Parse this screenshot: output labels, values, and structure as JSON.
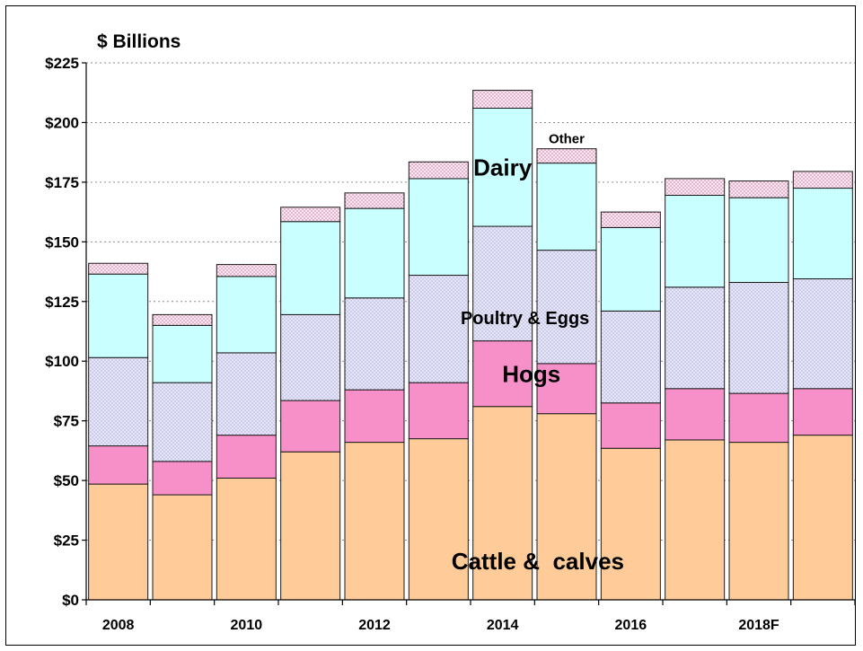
{
  "chart_data": {
    "type": "bar",
    "stacked": true,
    "title": "",
    "unit_label": "$ Billions",
    "xlabel": "",
    "ylabel": "",
    "ylim": [
      0,
      225
    ],
    "yticks": [
      0,
      25,
      50,
      75,
      100,
      125,
      150,
      175,
      200,
      225
    ],
    "ytick_labels": [
      "$0",
      "$25",
      "$50",
      "$75",
      "$100",
      "$125",
      "$150",
      "$175",
      "$200",
      "$225"
    ],
    "categories": [
      "2008",
      "2009",
      "2010",
      "2011",
      "2012",
      "2013",
      "2014",
      "2015",
      "2016",
      "2017",
      "2018F",
      "2019"
    ],
    "xtick_labels": [
      "2008",
      "",
      "2010",
      "",
      "2012",
      "",
      "2014",
      "",
      "2016",
      "",
      "2018F",
      ""
    ],
    "grid": "horizontal dotted",
    "legend": "none",
    "series": [
      {
        "name": "Cattle &  calves",
        "color": "#FFCC99",
        "values": [
          48.5,
          44,
          51,
          62,
          66,
          67.5,
          81,
          78,
          63.5,
          67,
          66,
          69
        ]
      },
      {
        "name": "Hogs",
        "color": "#F78FC8",
        "values": [
          16,
          14,
          18,
          21.5,
          22,
          23.5,
          27.5,
          21,
          19,
          21.5,
          20.5,
          19.5
        ]
      },
      {
        "name": "Poultry & Eggs",
        "color": "#E3E3F7",
        "pattern": "dotted",
        "values": [
          37,
          33,
          34.5,
          36,
          38.5,
          45,
          48,
          47.5,
          38.5,
          42.5,
          46.5,
          46
        ]
      },
      {
        "name": "Dairy",
        "color": "#C9FFFF",
        "values": [
          35,
          24,
          32,
          39,
          37.5,
          40.5,
          49.5,
          36.5,
          35,
          38.5,
          35.5,
          38
        ]
      },
      {
        "name": "Other",
        "color": "#FFD9EC",
        "pattern": "dotted",
        "values": [
          4.5,
          4.5,
          5,
          6,
          6.5,
          7,
          7.5,
          6,
          6.5,
          7,
          7,
          7
        ]
      }
    ],
    "annotations": [
      {
        "text": "Other",
        "series": "Other",
        "category": "2015"
      },
      {
        "text": "Dairy",
        "series": "Dairy",
        "category": "2014"
      },
      {
        "text": "Poultry & Eggs",
        "series": "Poultry & Eggs",
        "category": "2014"
      },
      {
        "text": "Hogs",
        "series": "Hogs",
        "category": "2014"
      },
      {
        "text": "Cattle &  calves",
        "series": "Cattle &  calves",
        "category": "2014"
      }
    ]
  }
}
